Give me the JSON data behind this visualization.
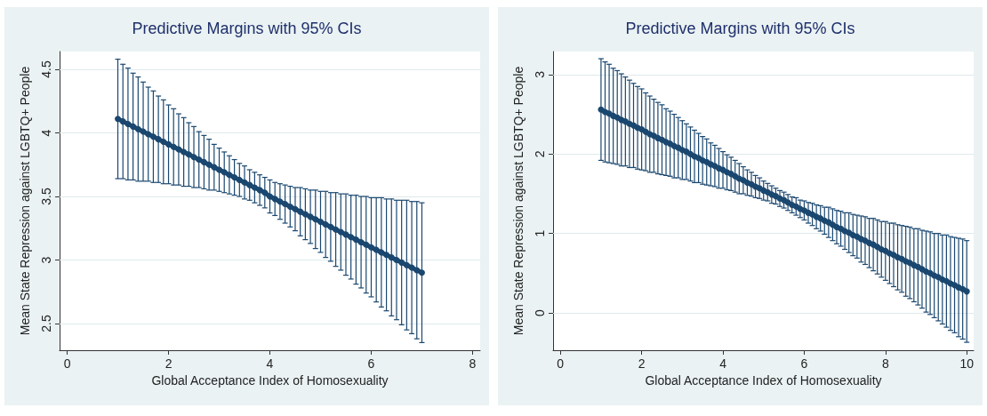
{
  "chart_data": [
    {
      "type": "line",
      "title": "Predictive Margins with 95% CIs",
      "xlabel": "Global Acceptance Index of Homosexuality",
      "ylabel": "Mean State Repression against LGBTQ+ People",
      "color": "#1a476f",
      "marker": "circle",
      "grid": "y",
      "xlim": [
        -0.15,
        8.15
      ],
      "xticks": [
        0,
        2,
        4,
        6,
        8
      ],
      "ylim": [
        2.29,
        4.64
      ],
      "yticks": [
        2.5,
        3,
        3.5,
        4,
        4.5
      ],
      "x": [
        1.0,
        1.1,
        1.2,
        1.3,
        1.4,
        1.5,
        1.6,
        1.7,
        1.8,
        1.9,
        2.0,
        2.1,
        2.2,
        2.3,
        2.4,
        2.5,
        2.6,
        2.7,
        2.8,
        2.9,
        3.0,
        3.1,
        3.2,
        3.3,
        3.4,
        3.5,
        3.6,
        3.7,
        3.8,
        3.9,
        4.0,
        4.1,
        4.2,
        4.3,
        4.4,
        4.5,
        4.6,
        4.7,
        4.8,
        4.9,
        5.0,
        5.1,
        5.2,
        5.3,
        5.4,
        5.5,
        5.6,
        5.7,
        5.8,
        5.9,
        6.0,
        6.1,
        6.2,
        6.3,
        6.4,
        6.5,
        6.6,
        6.7,
        6.8,
        6.9,
        7.0
      ],
      "values": [
        4.11,
        4.09,
        4.07,
        4.05,
        4.03,
        4.01,
        3.99,
        3.97,
        3.95,
        3.93,
        3.91,
        3.89,
        3.87,
        3.85,
        3.83,
        3.81,
        3.79,
        3.77,
        3.75,
        3.73,
        3.71,
        3.69,
        3.67,
        3.65,
        3.63,
        3.61,
        3.59,
        3.57,
        3.55,
        3.53,
        3.5,
        3.48,
        3.46,
        3.44,
        3.42,
        3.4,
        3.38,
        3.36,
        3.34,
        3.32,
        3.3,
        3.28,
        3.26,
        3.24,
        3.22,
        3.2,
        3.18,
        3.16,
        3.14,
        3.12,
        3.1,
        3.08,
        3.06,
        3.04,
        3.02,
        3.0,
        2.98,
        2.96,
        2.94,
        2.92,
        2.9
      ],
      "errors": [
        0.47,
        0.45,
        0.44,
        0.42,
        0.41,
        0.39,
        0.37,
        0.36,
        0.34,
        0.33,
        0.31,
        0.3,
        0.28,
        0.27,
        0.25,
        0.24,
        0.22,
        0.21,
        0.2,
        0.18,
        0.17,
        0.16,
        0.15,
        0.14,
        0.13,
        0.13,
        0.12,
        0.12,
        0.12,
        0.12,
        0.13,
        0.13,
        0.14,
        0.15,
        0.16,
        0.17,
        0.19,
        0.2,
        0.21,
        0.23,
        0.24,
        0.26,
        0.27,
        0.29,
        0.3,
        0.32,
        0.33,
        0.35,
        0.36,
        0.38,
        0.39,
        0.41,
        0.43,
        0.44,
        0.46,
        0.47,
        0.49,
        0.51,
        0.52,
        0.54,
        0.55
      ]
    },
    {
      "type": "line",
      "title": "Predictive Margins with 95% CIs",
      "xlabel": "Global Acceptance Index of Homosexuality",
      "ylabel": "Mean State Repression against LGBTQ+ People",
      "color": "#1a476f",
      "marker": "circle",
      "grid": "y",
      "xlim": [
        -0.18,
        10.17
      ],
      "xticks": [
        0,
        2,
        4,
        6,
        8,
        10
      ],
      "ylim": [
        -0.47,
        3.29
      ],
      "yticks": [
        0,
        1,
        2,
        3
      ],
      "x": [
        1.0,
        1.1,
        1.2,
        1.3,
        1.4,
        1.5,
        1.6,
        1.7,
        1.8,
        1.9,
        2.0,
        2.1,
        2.2,
        2.3,
        2.4,
        2.5,
        2.6,
        2.7,
        2.8,
        2.9,
        3.0,
        3.1,
        3.2,
        3.3,
        3.4,
        3.5,
        3.6,
        3.7,
        3.8,
        3.9,
        4.0,
        4.1,
        4.2,
        4.3,
        4.4,
        4.5,
        4.6,
        4.7,
        4.8,
        4.9,
        5.0,
        5.1,
        5.2,
        5.3,
        5.4,
        5.5,
        5.6,
        5.7,
        5.8,
        5.9,
        6.0,
        6.1,
        6.2,
        6.3,
        6.4,
        6.5,
        6.6,
        6.7,
        6.8,
        6.9,
        7.0,
        7.1,
        7.2,
        7.3,
        7.4,
        7.5,
        7.6,
        7.7,
        7.8,
        7.9,
        8.0,
        8.1,
        8.2,
        8.3,
        8.4,
        8.5,
        8.6,
        8.7,
        8.8,
        8.9,
        9.0,
        9.1,
        9.2,
        9.3,
        9.4,
        9.5,
        9.6,
        9.7,
        9.8,
        9.9,
        10.0
      ],
      "values": [
        2.56,
        2.53,
        2.51,
        2.48,
        2.46,
        2.43,
        2.41,
        2.38,
        2.36,
        2.33,
        2.31,
        2.28,
        2.25,
        2.23,
        2.2,
        2.18,
        2.15,
        2.13,
        2.1,
        2.08,
        2.05,
        2.03,
        2.0,
        1.97,
        1.95,
        1.92,
        1.9,
        1.87,
        1.85,
        1.82,
        1.8,
        1.77,
        1.75,
        1.72,
        1.69,
        1.67,
        1.64,
        1.62,
        1.59,
        1.57,
        1.54,
        1.52,
        1.49,
        1.47,
        1.44,
        1.42,
        1.39,
        1.36,
        1.34,
        1.31,
        1.29,
        1.26,
        1.24,
        1.21,
        1.19,
        1.16,
        1.14,
        1.11,
        1.08,
        1.06,
        1.03,
        1.01,
        0.98,
        0.96,
        0.93,
        0.91,
        0.88,
        0.86,
        0.83,
        0.8,
        0.78,
        0.75,
        0.73,
        0.7,
        0.68,
        0.65,
        0.63,
        0.6,
        0.58,
        0.55,
        0.52,
        0.5,
        0.47,
        0.45,
        0.42,
        0.4,
        0.37,
        0.35,
        0.32,
        0.3,
        0.27
      ],
      "errors": [
        0.64,
        0.63,
        0.62,
        0.6,
        0.59,
        0.58,
        0.56,
        0.55,
        0.53,
        0.52,
        0.51,
        0.49,
        0.48,
        0.46,
        0.45,
        0.44,
        0.42,
        0.41,
        0.4,
        0.38,
        0.37,
        0.35,
        0.34,
        0.33,
        0.31,
        0.3,
        0.29,
        0.27,
        0.26,
        0.25,
        0.23,
        0.22,
        0.21,
        0.2,
        0.19,
        0.17,
        0.16,
        0.15,
        0.14,
        0.13,
        0.12,
        0.11,
        0.11,
        0.1,
        0.1,
        0.1,
        0.1,
        0.1,
        0.11,
        0.11,
        0.12,
        0.13,
        0.14,
        0.15,
        0.16,
        0.17,
        0.19,
        0.2,
        0.21,
        0.22,
        0.23,
        0.25,
        0.26,
        0.27,
        0.29,
        0.3,
        0.31,
        0.33,
        0.34,
        0.35,
        0.37,
        0.38,
        0.4,
        0.41,
        0.42,
        0.44,
        0.45,
        0.46,
        0.48,
        0.49,
        0.51,
        0.52,
        0.53,
        0.55,
        0.56,
        0.58,
        0.59,
        0.6,
        0.62,
        0.63,
        0.64
      ]
    }
  ]
}
